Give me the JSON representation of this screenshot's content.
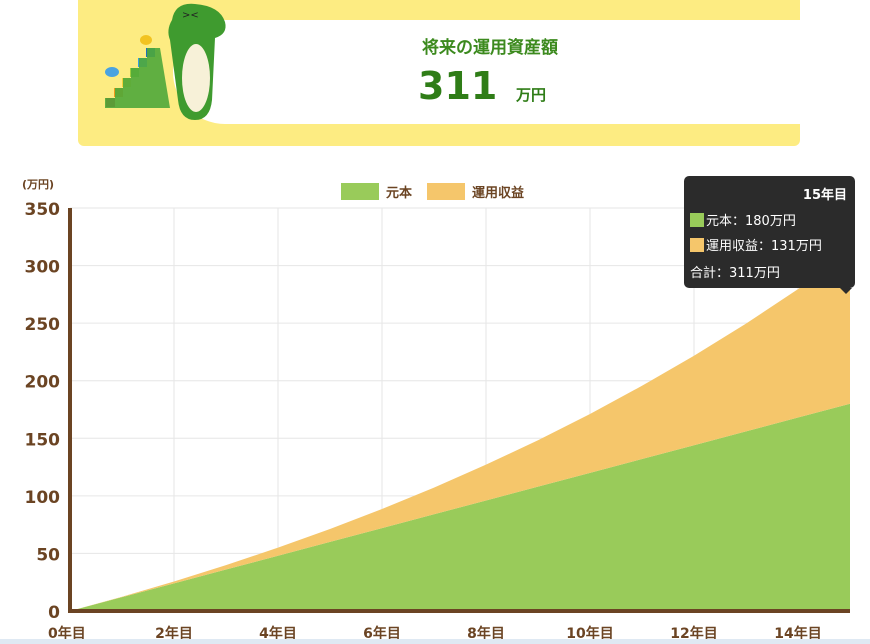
{
  "header": {
    "title": "将来の運用資産額",
    "amount": "311",
    "unit": "万円"
  },
  "chart_data": {
    "type": "area",
    "stacked": true,
    "y_unit_label": "(万円)",
    "ylim": [
      0,
      350
    ],
    "yticks": [
      0,
      50,
      100,
      150,
      200,
      250,
      300,
      350
    ],
    "x": [
      0,
      1,
      2,
      3,
      4,
      5,
      6,
      7,
      8,
      9,
      10,
      11,
      12,
      13,
      14,
      15
    ],
    "xtick_labels": [
      "0年目",
      "2年目",
      "4年目",
      "6年目",
      "8年目",
      "10年目",
      "12年目",
      "14年目"
    ],
    "xtick_values": [
      0,
      2,
      4,
      6,
      8,
      10,
      12,
      14
    ],
    "grid": true,
    "legend_position": "top",
    "series": [
      {
        "name": "元本",
        "color": "#99cb5a",
        "values": [
          0,
          12,
          24,
          36,
          48,
          60,
          72,
          84,
          96,
          108,
          120,
          132,
          144,
          156,
          168,
          180
        ]
      },
      {
        "name": "運用収益",
        "color": "#f5c66b",
        "values": [
          0,
          0.4,
          1.6,
          3.8,
          7,
          11.2,
          16.6,
          23.2,
          31.1,
          40.3,
          51.1,
          63.6,
          77.7,
          93.6,
          111.5,
          131
        ]
      }
    ]
  },
  "tooltip": {
    "title": "15年目",
    "principal": "元本：180万円",
    "gain": "運用収益：131万円",
    "total": "合計：311万円"
  },
  "colors": {
    "banner": "#fdec82",
    "accent": "#2f7d17",
    "axis": "#6b4423"
  }
}
